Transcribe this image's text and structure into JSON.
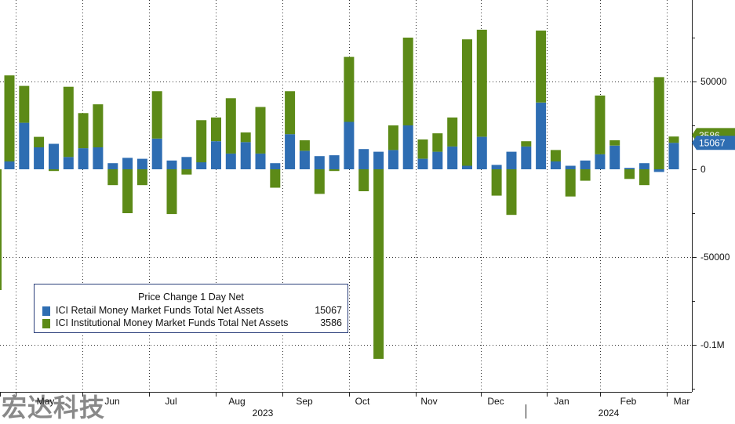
{
  "chart_data": {
    "type": "bar",
    "stacked": true,
    "title": "Price Change 1 Day Net",
    "ylim": [
      -125000,
      95000
    ],
    "yticks": [
      -100000,
      -50000,
      0,
      50000
    ],
    "ytick_labels": [
      "-0.1M",
      "-50000",
      "0",
      "50000"
    ],
    "x_month_labels": [
      "May",
      "Jun",
      "Jul",
      "Aug",
      "Sep",
      "Oct",
      "Nov",
      "Dec",
      "Jan",
      "Feb",
      "Mar"
    ],
    "x_year_labels": [
      "2023",
      "2024"
    ],
    "grid": true,
    "legend_position": "bottom-left",
    "series": [
      {
        "name": "ICI Retail Money Market Funds Total Net Assets",
        "legend_value": "15067",
        "color": "#2e6db2",
        "values": [
          4500,
          26500,
          12500,
          14500,
          7000,
          12000,
          12500,
          3500,
          6500,
          6000,
          17500,
          5000,
          7000,
          4000,
          16000,
          9000,
          15500,
          9000,
          3500,
          20000,
          10500,
          7500,
          8000,
          27000,
          11500,
          10000,
          11000,
          25000,
          6000,
          10000,
          13000,
          2000,
          18500,
          2500,
          10000,
          13000,
          38000,
          4500,
          2000,
          5000,
          8500,
          13500,
          800,
          3500,
          -1500,
          15067
        ]
      },
      {
        "name": "ICI Institutional Money Market Funds Total Net Assets",
        "legend_value": "3586",
        "color": "#5c8a17",
        "values": [
          49000,
          21000,
          6000,
          -1000,
          40000,
          20000,
          24500,
          -9000,
          -25000,
          -9000,
          27000,
          -25500,
          -3000,
          24000,
          13500,
          31500,
          5500,
          26500,
          -10500,
          24500,
          6000,
          -14000,
          -1000,
          37000,
          -12500,
          -108000,
          14000,
          50000,
          11000,
          10500,
          16500,
          72000,
          61000,
          -15000,
          -26000,
          3000,
          41000,
          6500,
          -15500,
          -6500,
          33500,
          3000,
          -5500,
          -9000,
          52500,
          3586
        ]
      }
    ]
  },
  "watermark_text": "宏达科技"
}
